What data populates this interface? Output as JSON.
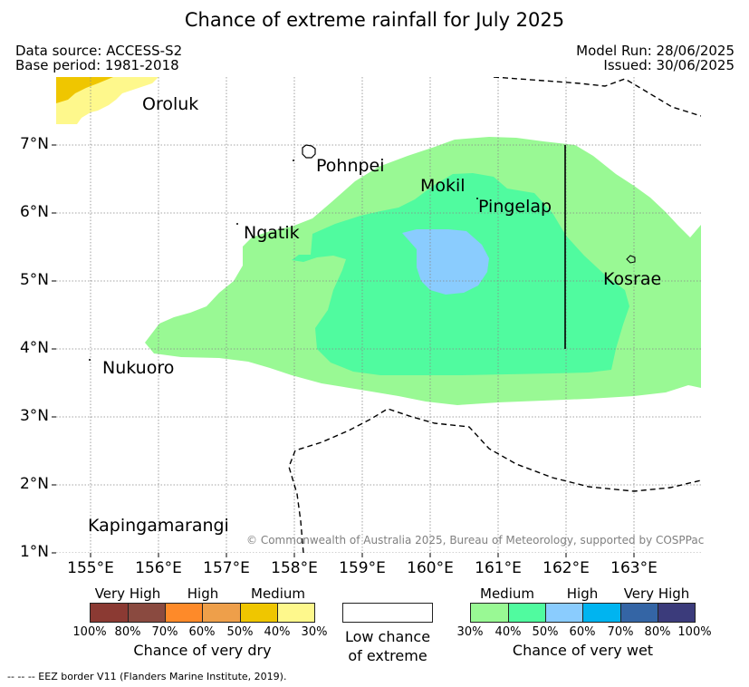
{
  "title": "Chance of extreme rainfall for July 2025",
  "meta": {
    "data_source": "Data source: ACCESS-S2",
    "base_period": "Base period: 1981-2018",
    "model_run": "Model Run: 28/06/2025",
    "issued": "Issued: 30/06/2025"
  },
  "axes": {
    "x_ticks": [
      "155°E",
      "156°E",
      "157°E",
      "158°E",
      "159°E",
      "160°E",
      "161°E",
      "162°E",
      "163°E"
    ],
    "y_ticks": [
      "7°N",
      "6°N",
      "5°N",
      "4°N",
      "3°N",
      "2°N",
      "1°N"
    ],
    "lon_range": [
      154.5,
      164.0
    ],
    "lat_range": [
      1.0,
      8.0
    ]
  },
  "places": {
    "oroluk": "Oroluk",
    "pohnpei": "Pohnpei",
    "mokil": "Mokil",
    "pingelap": "Pingelap",
    "ngatik": "Ngatik",
    "kosrae": "Kosrae",
    "nukuoro": "Nukuoro",
    "kapingamarangi": "Kapingamarangi"
  },
  "copyright": "© Commonwealth of Australia 2025, Bureau of Meteorology, supported by COSPPac",
  "legend": {
    "dry": {
      "headings": [
        "Very High",
        "High",
        "Medium"
      ],
      "ticks": [
        "100%",
        "80%",
        "70%",
        "60%",
        "50%",
        "40%",
        "30%"
      ],
      "caption": "Chance of very dry",
      "colors": [
        "#8b3a33",
        "#8a4a40",
        "#fe8a29",
        "#ee9f4a",
        "#efc600",
        "#fef88c"
      ]
    },
    "neutral": {
      "caption_line1": "Low chance",
      "caption_line2": "of extreme"
    },
    "wet": {
      "headings": [
        "Medium",
        "High",
        "Very High"
      ],
      "ticks": [
        "30%",
        "40%",
        "50%",
        "60%",
        "70%",
        "80%",
        "100%"
      ],
      "caption": "Chance of very wet",
      "colors": [
        "#99f994",
        "#50fb9f",
        "#8accfe",
        "#00b4f0",
        "#3465a5",
        "#3b3b7b"
      ]
    }
  },
  "footnote": "-- -- -- EEZ border V11 (Flanders Marine Institute, 2019).",
  "colors": {
    "wet_medium_30_40": "#99f994",
    "wet_medium_40_50": "#50fb9f",
    "wet_high_50_60": "#8accfe",
    "dry_medium_30_40": "#fef88c",
    "dry_medium_40_50": "#efc600"
  }
}
